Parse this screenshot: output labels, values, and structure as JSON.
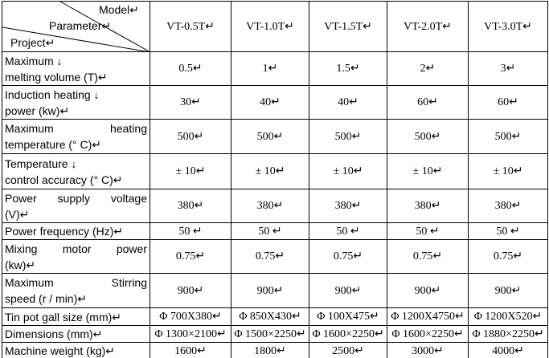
{
  "table": {
    "header": {
      "model": "Model↵",
      "parameter": "Parameter↵",
      "project": "Project↵",
      "columns": [
        "VT-0.5T↵",
        "VT-1.0T↵",
        "VT-1.5T↵",
        "VT-2.0T↵",
        "VT-3.0T↵"
      ]
    },
    "rows": [
      {
        "label": [
          "Maximum ↓",
          "melting volume (T)↵"
        ],
        "values": [
          "0.5↵",
          "1↵",
          "1.5↵",
          "2↵",
          "3↵"
        ]
      },
      {
        "label": [
          "Induction heating ↓",
          "power (kw)↵"
        ],
        "values": [
          "30↵",
          "40↵",
          "40↵",
          "60↵",
          "60↵"
        ]
      },
      {
        "label": [
          "Maximum heating",
          "temperature (° C)↵"
        ],
        "values": [
          "500↵",
          "500↵",
          "500↵",
          "500↵",
          "500↵"
        ]
      },
      {
        "label": [
          "Temperature ↓",
          "control accuracy (° C)↵"
        ],
        "values": [
          "± 10↵",
          "± 10↵",
          "± 10↵",
          "± 10↵",
          "± 10↵"
        ]
      },
      {
        "label": [
          "Power supply voltage",
          "(V)↵"
        ],
        "values": [
          "380↵",
          "380↵",
          "380↵",
          "380↵",
          "380↵"
        ]
      },
      {
        "label": [
          "Power frequency (Hz)↵"
        ],
        "values": [
          "50 ↵",
          "50 ↵",
          "50 ↵",
          "50 ↵",
          "50 ↵"
        ]
      },
      {
        "label": [
          "Mixing motor power",
          "(kw)↵"
        ],
        "values": [
          "0.75↵",
          "0.75↵",
          "0.75↵",
          "0.75↵",
          "0.75↵"
        ]
      },
      {
        "label": [
          "Maximum Stirring",
          "speed (r / min)↵"
        ],
        "values": [
          "900↵",
          "900↵",
          "900↵",
          "900↵",
          "900↵"
        ]
      },
      {
        "label": [
          "Tin pot gall size (mm)↵"
        ],
        "values": [
          "Φ 700X380↵",
          "Φ 850X430↵",
          "Φ 100X475↵",
          "Φ 1200X4750↵",
          "Φ 1200X520↵"
        ]
      },
      {
        "label": [
          "Dimensions (mm)↵"
        ],
        "values": [
          "Φ 1300×2100↵",
          "Φ 1500×2250↵",
          "Φ 1600×2250↵",
          "Φ 1600×2250↵",
          "Φ 1880×2250↵"
        ]
      },
      {
        "label": [
          "Machine weight (kg)↵"
        ],
        "values": [
          "1600↵",
          "1800↵",
          "2500↵",
          "3000↵",
          "4000↵"
        ]
      }
    ]
  }
}
